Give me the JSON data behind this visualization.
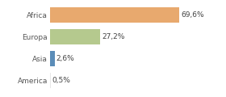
{
  "categories": [
    "Africa",
    "Europa",
    "Asia",
    "America"
  ],
  "values": [
    69.6,
    27.2,
    2.6,
    0.5
  ],
  "labels": [
    "69,6%",
    "27,2%",
    "2,6%",
    "0,5%"
  ],
  "bar_colors": [
    "#e8a96e",
    "#b5c98e",
    "#5b8db8",
    "#e8e8e8"
  ],
  "background_color": "#ffffff",
  "xlim": [
    0,
    80
  ],
  "label_fontsize": 6.5,
  "tick_fontsize": 6.5,
  "bar_height": 0.7
}
